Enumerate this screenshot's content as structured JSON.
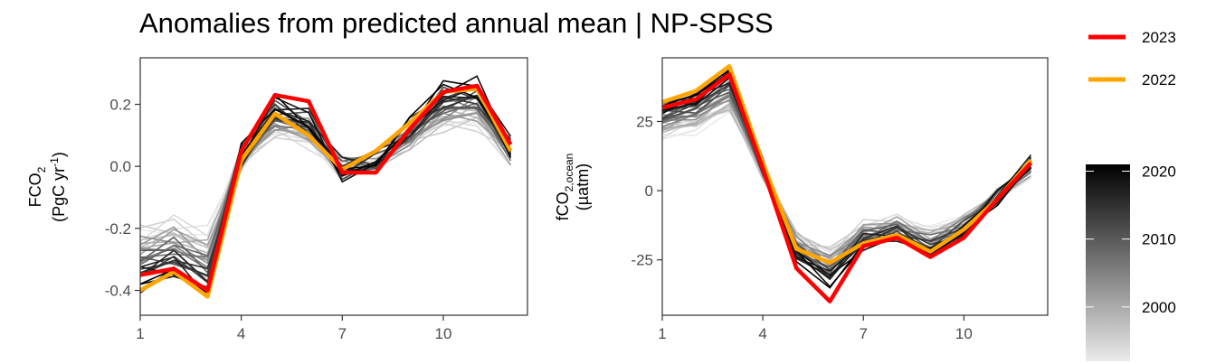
{
  "title": "Anomalies from predicted annual mean | NP-SPSS",
  "colors": {
    "y2023": "#ff0000",
    "y2022": "#ffa500",
    "old": "#e6e6e6",
    "new": "#000000"
  },
  "legend": {
    "items": [
      {
        "label": "2023",
        "color": "#ff0000"
      },
      {
        "label": "2022",
        "color": "#ffa500"
      }
    ]
  },
  "colorbar": {
    "range": [
      1992,
      2021
    ],
    "ticks": [
      2000,
      2010,
      2020
    ]
  },
  "chart_data": [
    {
      "type": "line",
      "ylabel_line1": "FCO",
      "ylabel_sub": "2",
      "ylabel_line2": "(PgC yr",
      "ylabel_sup": "-1",
      "ylabel_close": ")",
      "xlim": [
        1,
        12.5
      ],
      "ylim": [
        -0.48,
        0.35
      ],
      "x_ticks": [
        1,
        4,
        7,
        10
      ],
      "y_ticks": [
        -0.4,
        -0.2,
        0.0,
        0.2
      ],
      "y_tick_labels": [
        "-0.4",
        "-0.2",
        "0.0",
        "0.2"
      ],
      "x": [
        1,
        2,
        3,
        4,
        5,
        6,
        7,
        8,
        9,
        10,
        11,
        12
      ],
      "highlight_series": [
        {
          "name": "2022",
          "values": [
            -0.4,
            -0.34,
            -0.42,
            0.02,
            0.17,
            0.1,
            -0.01,
            0.05,
            0.14,
            0.24,
            0.25,
            0.05
          ]
        },
        {
          "name": "2023",
          "values": [
            -0.35,
            -0.33,
            -0.4,
            0.05,
            0.23,
            0.21,
            -0.02,
            -0.02,
            0.12,
            0.24,
            0.26,
            0.07
          ]
        }
      ]
    },
    {
      "type": "line",
      "ylabel_line1": "fCO",
      "ylabel_sub": "2,ocean",
      "ylabel_line2": "(µatm)",
      "xlim": [
        1,
        12.5
      ],
      "ylim": [
        -45,
        48
      ],
      "x_ticks": [
        1,
        4,
        7,
        10
      ],
      "y_ticks": [
        -25,
        0,
        25
      ],
      "y_tick_labels": [
        "-25",
        "0",
        "25"
      ],
      "x": [
        1,
        2,
        3,
        4,
        5,
        6,
        7,
        8,
        9,
        10,
        11,
        12
      ],
      "highlight_series": [
        {
          "name": "2022",
          "values": [
            32,
            36,
            45,
            10,
            -21,
            -26,
            -19,
            -16,
            -22,
            -14,
            -3,
            11
          ]
        },
        {
          "name": "2023",
          "values": [
            30,
            33,
            42,
            8,
            -28,
            -40,
            -20,
            -17,
            -24,
            -17,
            -3,
            10
          ]
        }
      ]
    }
  ]
}
